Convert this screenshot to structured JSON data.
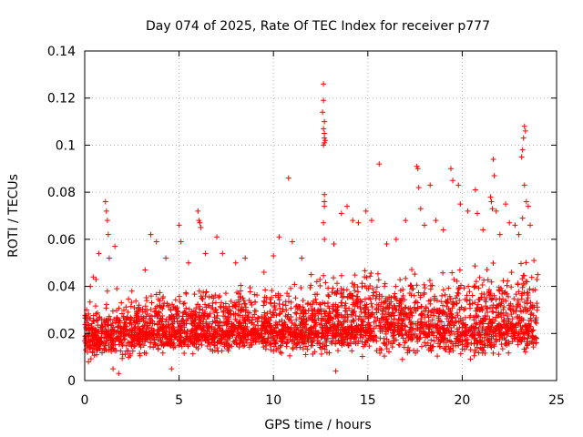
{
  "chart_data": {
    "type": "scatter",
    "title": "Day 074 of 2025, Rate Of TEC Index for receiver p777",
    "xlabel": "GPS time / hours",
    "ylabel": "ROTI / TECUs",
    "xlim": [
      0,
      25
    ],
    "ylim": [
      0,
      0.14
    ],
    "x_ticks": [
      0,
      5,
      10,
      15,
      20,
      25
    ],
    "x_tick_labels": [
      "0",
      "5",
      "10",
      "15",
      "20",
      "25"
    ],
    "y_ticks": [
      0,
      0.02,
      0.04,
      0.06,
      0.08,
      0.1,
      0.12,
      0.14
    ],
    "y_tick_labels": [
      "0",
      "0.02",
      "0.04",
      "0.06",
      "0.08",
      "0.1",
      "0.12",
      "0.14"
    ],
    "grid": true,
    "marker": "+",
    "color": "#ff0000",
    "series": [
      {
        "name": "ROTI",
        "points": [
          [
            0.1,
            0.03
          ],
          [
            0.2,
            0.008
          ],
          [
            0.3,
            0.04
          ],
          [
            0.45,
            0.044
          ],
          [
            0.6,
            0.043
          ],
          [
            0.75,
            0.054
          ],
          [
            1.1,
            0.076
          ],
          [
            1.15,
            0.072
          ],
          [
            1.2,
            0.068
          ],
          [
            1.25,
            0.062
          ],
          [
            1.3,
            0.052
          ],
          [
            1.6,
            0.057
          ],
          [
            1.7,
            0.039
          ],
          [
            1.2,
            0.038
          ],
          [
            1.5,
            0.005
          ],
          [
            1.8,
            0.003
          ],
          [
            2.5,
            0.038
          ],
          [
            3.2,
            0.047
          ],
          [
            3.5,
            0.062
          ],
          [
            3.8,
            0.059
          ],
          [
            4.3,
            0.052
          ],
          [
            4.6,
            0.005
          ],
          [
            5.0,
            0.066
          ],
          [
            5.1,
            0.059
          ],
          [
            5.5,
            0.05
          ],
          [
            6.0,
            0.072
          ],
          [
            6.05,
            0.068
          ],
          [
            6.1,
            0.067
          ],
          [
            6.15,
            0.065
          ],
          [
            6.4,
            0.054
          ],
          [
            7.0,
            0.061
          ],
          [
            7.3,
            0.054
          ],
          [
            8.0,
            0.05
          ],
          [
            8.5,
            0.052
          ],
          [
            9.5,
            0.046
          ],
          [
            10.0,
            0.053
          ],
          [
            10.3,
            0.061
          ],
          [
            10.8,
            0.086
          ],
          [
            11.0,
            0.059
          ],
          [
            11.5,
            0.052
          ],
          [
            12.0,
            0.045
          ],
          [
            12.3,
            0.042
          ],
          [
            12.65,
            0.126
          ],
          [
            12.65,
            0.119
          ],
          [
            12.6,
            0.114
          ],
          [
            12.7,
            0.11
          ],
          [
            12.65,
            0.107
          ],
          [
            12.7,
            0.105
          ],
          [
            12.7,
            0.103
          ],
          [
            12.7,
            0.101
          ],
          [
            12.65,
            0.1
          ],
          [
            12.75,
            0.102
          ],
          [
            12.7,
            0.079
          ],
          [
            12.7,
            0.076
          ],
          [
            12.7,
            0.074
          ],
          [
            12.65,
            0.067
          ],
          [
            12.7,
            0.06
          ],
          [
            13.2,
            0.058
          ],
          [
            13.3,
            0.004
          ],
          [
            13.6,
            0.071
          ],
          [
            13.9,
            0.074
          ],
          [
            14.2,
            0.068
          ],
          [
            14.5,
            0.067
          ],
          [
            14.9,
            0.072
          ],
          [
            15.2,
            0.068
          ],
          [
            15.6,
            0.092
          ],
          [
            16.0,
            0.058
          ],
          [
            16.5,
            0.06
          ],
          [
            17.0,
            0.068
          ],
          [
            17.6,
            0.091
          ],
          [
            17.65,
            0.09
          ],
          [
            17.7,
            0.082
          ],
          [
            17.8,
            0.073
          ],
          [
            18.0,
            0.066
          ],
          [
            18.3,
            0.083
          ],
          [
            18.6,
            0.068
          ],
          [
            19.0,
            0.064
          ],
          [
            19.4,
            0.09
          ],
          [
            19.5,
            0.085
          ],
          [
            19.8,
            0.083
          ],
          [
            19.9,
            0.075
          ],
          [
            20.3,
            0.072
          ],
          [
            20.7,
            0.081
          ],
          [
            20.8,
            0.071
          ],
          [
            21.1,
            0.064
          ],
          [
            21.5,
            0.078
          ],
          [
            21.55,
            0.076
          ],
          [
            21.6,
            0.073
          ],
          [
            21.65,
            0.094
          ],
          [
            21.7,
            0.087
          ],
          [
            21.8,
            0.072
          ],
          [
            22.0,
            0.062
          ],
          [
            22.3,
            0.075
          ],
          [
            22.5,
            0.067
          ],
          [
            22.8,
            0.066
          ],
          [
            23.0,
            0.062
          ],
          [
            23.15,
            0.095
          ],
          [
            23.2,
            0.098
          ],
          [
            23.25,
            0.103
          ],
          [
            23.3,
            0.108
          ],
          [
            23.35,
            0.106
          ],
          [
            23.3,
            0.083
          ],
          [
            23.4,
            0.076
          ],
          [
            23.5,
            0.074
          ],
          [
            23.2,
            0.069
          ],
          [
            23.6,
            0.066
          ],
          [
            23.8,
            0.051
          ],
          [
            24.0,
            0.045
          ]
        ],
        "bulk_band": {
          "x": [
            0,
            1,
            2,
            3,
            4,
            5,
            6,
            7,
            8,
            9,
            10,
            11,
            12,
            13,
            14,
            15,
            16,
            17,
            18,
            19,
            20,
            21,
            22,
            23,
            24
          ],
          "low": [
            0.008,
            0.006,
            0.006,
            0.008,
            0.008,
            0.009,
            0.009,
            0.009,
            0.009,
            0.009,
            0.008,
            0.008,
            0.009,
            0.01,
            0.009,
            0.008,
            0.008,
            0.008,
            0.008,
            0.007,
            0.007,
            0.007,
            0.007,
            0.007,
            0.008
          ],
          "mid": [
            0.02,
            0.018,
            0.019,
            0.021,
            0.021,
            0.021,
            0.021,
            0.021,
            0.022,
            0.022,
            0.022,
            0.021,
            0.021,
            0.023,
            0.023,
            0.024,
            0.025,
            0.024,
            0.024,
            0.023,
            0.023,
            0.023,
            0.024,
            0.024,
            0.023
          ],
          "high": [
            0.036,
            0.034,
            0.038,
            0.042,
            0.043,
            0.043,
            0.043,
            0.044,
            0.043,
            0.044,
            0.045,
            0.044,
            0.044,
            0.05,
            0.051,
            0.053,
            0.054,
            0.05,
            0.052,
            0.053,
            0.054,
            0.055,
            0.056,
            0.057,
            0.055
          ]
        }
      }
    ]
  }
}
